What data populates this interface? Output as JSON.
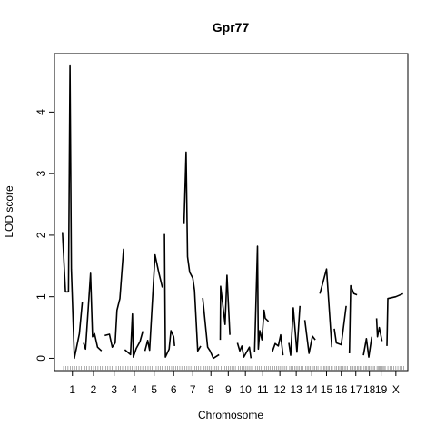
{
  "chart_data": {
    "type": "line",
    "title": "Gpr77",
    "xlabel": "Chromosome",
    "ylabel": "LOD score",
    "ylim": [
      -0.2,
      4.95
    ],
    "y_ticks": [
      0,
      1,
      2,
      3,
      4
    ],
    "grid": false,
    "legend": "none",
    "line_color": "#000000",
    "chromosomes": [
      {
        "label": "1",
        "start": 0,
        "length": 1.0,
        "points": [
          [
            0,
            2.05
          ],
          [
            0.15,
            1.08
          ],
          [
            0.3,
            1.08
          ],
          [
            0.38,
            4.75
          ],
          [
            0.45,
            1.45
          ],
          [
            0.6,
            0.0
          ],
          [
            0.85,
            0.4
          ],
          [
            1.0,
            0.92
          ]
        ]
      },
      {
        "label": "2",
        "start": 1.06,
        "length": 1.0,
        "points": [
          [
            0,
            0.25
          ],
          [
            0.1,
            0.15
          ],
          [
            0.35,
            1.38
          ],
          [
            0.45,
            0.35
          ],
          [
            0.55,
            0.4
          ],
          [
            0.7,
            0.18
          ],
          [
            0.9,
            0.12
          ]
        ]
      },
      {
        "label": "3",
        "start": 2.12,
        "length": 0.95,
        "points": [
          [
            0,
            0.37
          ],
          [
            0.25,
            0.39
          ],
          [
            0.4,
            0.18
          ],
          [
            0.55,
            0.25
          ],
          [
            0.65,
            0.78
          ],
          [
            0.8,
            0.97
          ],
          [
            1.0,
            1.78
          ]
        ]
      },
      {
        "label": "4",
        "start": 3.13,
        "length": 0.95,
        "points": [
          [
            0,
            0.14
          ],
          [
            0.3,
            0.06
          ],
          [
            0.4,
            0.72
          ],
          [
            0.45,
            0.02
          ],
          [
            0.6,
            0.16
          ],
          [
            0.8,
            0.27
          ],
          [
            0.95,
            0.44
          ]
        ]
      },
      {
        "label": "5",
        "start": 4.14,
        "length": 0.92,
        "points": [
          [
            0,
            0.12
          ],
          [
            0.15,
            0.29
          ],
          [
            0.25,
            0.13
          ],
          [
            0.55,
            1.68
          ],
          [
            0.75,
            1.4
          ],
          [
            0.95,
            1.15
          ]
        ]
      },
      {
        "label": "6",
        "start": 5.12,
        "length": 0.92,
        "points": [
          [
            0,
            2.02
          ],
          [
            0.05,
            0.02
          ],
          [
            0.25,
            0.15
          ],
          [
            0.35,
            0.45
          ],
          [
            0.5,
            0.35
          ],
          [
            0.55,
            0.2
          ]
        ]
      },
      {
        "label": "7",
        "start": 6.1,
        "length": 0.88,
        "points": [
          [
            0,
            2.18
          ],
          [
            0.12,
            3.35
          ],
          [
            0.2,
            1.65
          ],
          [
            0.32,
            1.4
          ],
          [
            0.5,
            1.3
          ],
          [
            0.6,
            1.1
          ],
          [
            0.78,
            0.12
          ],
          [
            0.95,
            0.2
          ]
        ]
      },
      {
        "label": "8",
        "start": 7.04,
        "length": 0.82,
        "points": [
          [
            0,
            0.98
          ],
          [
            0.3,
            0.18
          ],
          [
            0.45,
            0.12
          ],
          [
            0.65,
            0.0
          ],
          [
            1.0,
            0.06
          ]
        ]
      },
      {
        "label": "9",
        "start": 7.92,
        "length": 0.8,
        "points": [
          [
            0,
            0.3
          ],
          [
            0.02,
            1.17
          ],
          [
            0.3,
            0.55
          ],
          [
            0.42,
            1.35
          ],
          [
            0.6,
            0.38
          ]
        ]
      },
      {
        "label": "10",
        "start": 8.78,
        "length": 0.8,
        "points": [
          [
            0,
            0.25
          ],
          [
            0.15,
            0.12
          ],
          [
            0.28,
            0.2
          ],
          [
            0.4,
            0.02
          ],
          [
            0.75,
            0.18
          ],
          [
            0.85,
            0.0
          ]
        ]
      },
      {
        "label": "11",
        "start": 9.64,
        "length": 0.82,
        "points": [
          [
            0,
            0.1
          ],
          [
            0.18,
            1.82
          ],
          [
            0.23,
            0.15
          ],
          [
            0.32,
            0.45
          ],
          [
            0.45,
            0.3
          ],
          [
            0.58,
            0.78
          ],
          [
            0.65,
            0.65
          ],
          [
            0.85,
            0.6
          ]
        ]
      },
      {
        "label": "12",
        "start": 10.52,
        "length": 0.78,
        "points": [
          [
            0,
            0.1
          ],
          [
            0.2,
            0.24
          ],
          [
            0.4,
            0.2
          ],
          [
            0.55,
            0.38
          ],
          [
            0.7,
            0.05
          ]
        ]
      },
      {
        "label": "13",
        "start": 11.36,
        "length": 0.74,
        "points": [
          [
            0,
            0.25
          ],
          [
            0.12,
            0.05
          ],
          [
            0.3,
            0.82
          ],
          [
            0.55,
            0.1
          ],
          [
            0.75,
            0.85
          ]
        ]
      },
      {
        "label": "14",
        "start": 12.16,
        "length": 0.7,
        "points": [
          [
            0,
            0.62
          ],
          [
            0.3,
            0.08
          ],
          [
            0.55,
            0.36
          ],
          [
            0.75,
            0.3
          ]
        ]
      },
      {
        "label": "15",
        "start": 12.92,
        "length": 0.66,
        "points": [
          [
            0,
            1.05
          ],
          [
            0.5,
            1.45
          ],
          [
            0.9,
            0.18
          ]
        ]
      },
      {
        "label": "16",
        "start": 13.64,
        "length": 0.7,
        "points": [
          [
            0,
            0.48
          ],
          [
            0.15,
            0.25
          ],
          [
            0.5,
            0.22
          ],
          [
            0.85,
            0.85
          ]
        ]
      },
      {
        "label": "17",
        "start": 14.4,
        "length": 0.64,
        "points": [
          [
            0,
            0.08
          ],
          [
            0.1,
            1.18
          ],
          [
            0.35,
            1.05
          ],
          [
            0.6,
            1.03
          ]
        ]
      },
      {
        "label": "18",
        "start": 15.1,
        "length": 0.6,
        "points": [
          [
            0,
            0.05
          ],
          [
            0.25,
            0.32
          ],
          [
            0.45,
            0.02
          ],
          [
            0.7,
            0.35
          ]
        ]
      },
      {
        "label": "19",
        "start": 15.76,
        "length": 0.46,
        "points": [
          [
            0,
            0.65
          ],
          [
            0.1,
            0.35
          ],
          [
            0.3,
            0.5
          ],
          [
            0.6,
            0.28
          ]
        ]
      },
      {
        "label": "X",
        "start": 16.28,
        "length": 0.9,
        "points": [
          [
            0,
            0.2
          ],
          [
            0.05,
            0.97
          ],
          [
            0.5,
            1.0
          ],
          [
            0.9,
            1.05
          ]
        ]
      }
    ]
  }
}
